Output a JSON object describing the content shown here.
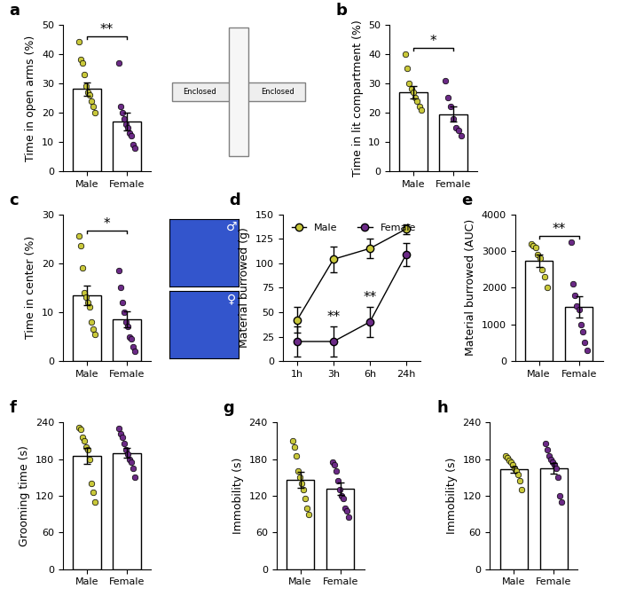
{
  "chart_data": [
    {
      "type": "bar",
      "title": "a",
      "categories": [
        "Male",
        "Female"
      ],
      "values": [
        28,
        17
      ],
      "errors": [
        2.4,
        2.9
      ],
      "points": [
        [
          44,
          38,
          37,
          33,
          29,
          27,
          26,
          24,
          22,
          20
        ],
        [
          37,
          22,
          20,
          18,
          16,
          15,
          13,
          12,
          9,
          8
        ]
      ],
      "colors": [
        "#c9c83a",
        "#6b2a86"
      ],
      "y_label": "Time in open arms (%)",
      "ylim": [
        0,
        50
      ],
      "yticks": [
        0,
        10,
        20,
        30,
        40,
        50
      ],
      "annotations": [
        "**"
      ],
      "diagram_labels": [
        "Enclosed",
        "Enclosed"
      ]
    },
    {
      "type": "bar",
      "title": "b",
      "categories": [
        "Male",
        "Female"
      ],
      "values": [
        27,
        19.5
      ],
      "errors": [
        2.1,
        2.5
      ],
      "points": [
        [
          40,
          35,
          30,
          28,
          27,
          25,
          24,
          22,
          21
        ],
        [
          31,
          25,
          22,
          18,
          15,
          14,
          12
        ]
      ],
      "colors": [
        "#c9c83a",
        "#6b2a86"
      ],
      "y_label": "Time in lit compartment (%)",
      "ylim": [
        0,
        50
      ],
      "yticks": [
        0,
        10,
        20,
        30,
        40,
        50
      ],
      "annotations": [
        "*"
      ]
    },
    {
      "type": "bar",
      "title": "c",
      "categories": [
        "Male",
        "Female"
      ],
      "values": [
        13.5,
        8.5
      ],
      "errors": [
        2.0,
        1.6
      ],
      "points": [
        [
          25.5,
          23.5,
          19,
          14,
          13,
          12,
          11,
          8,
          6.5,
          5.5
        ],
        [
          18.5,
          15,
          12,
          10,
          8,
          7,
          5,
          4.5,
          3,
          2
        ]
      ],
      "colors": [
        "#c9c83a",
        "#6b2a86"
      ],
      "y_label": "Time in center (%)",
      "ylim": [
        0,
        30
      ],
      "yticks": [
        0,
        10,
        20,
        30
      ],
      "annotations": [
        "*"
      ],
      "heatmap_labels": [
        "♂",
        "♀"
      ]
    },
    {
      "type": "line",
      "title": "d",
      "categories": [
        "1h",
        "3h",
        "6h",
        "24h"
      ],
      "y_label": "Material burrowed (g)",
      "ylim": [
        0,
        150
      ],
      "yticks": [
        0,
        25,
        50,
        75,
        100,
        125,
        150
      ],
      "legend": "upper left",
      "series": [
        {
          "name": "Male",
          "color": "#c9c83a",
          "values": [
            42,
            104,
            115,
            135
          ],
          "errors": [
            13,
            13,
            10,
            5
          ],
          "annotations": [
            null,
            null,
            null,
            null
          ]
        },
        {
          "name": "Female",
          "color": "#6b2a86",
          "values": [
            20,
            20,
            40,
            109
          ],
          "errors": [
            15,
            15,
            15,
            12
          ],
          "annotations": [
            null,
            "**",
            "**",
            null
          ]
        }
      ]
    },
    {
      "type": "bar",
      "title": "e",
      "categories": [
        "Male",
        "Female"
      ],
      "values": [
        2740,
        1480
      ],
      "errors": [
        170,
        290
      ],
      "points": [
        [
          3200,
          3150,
          3100,
          2900,
          2800,
          2500,
          2300,
          2000
        ],
        [
          3250,
          2100,
          1800,
          1500,
          1400,
          1000,
          800,
          500,
          300
        ]
      ],
      "colors": [
        "#c9c83a",
        "#6b2a86"
      ],
      "y_label": "Material burrowed (AUC)",
      "ylim": [
        0,
        4000
      ],
      "yticks": [
        0,
        1000,
        2000,
        3000,
        4000
      ],
      "annotations": [
        "**"
      ]
    },
    {
      "type": "bar",
      "title": "f",
      "categories": [
        "Male",
        "Female"
      ],
      "values": [
        185,
        190
      ],
      "errors": [
        13,
        8
      ],
      "points": [
        [
          232,
          228,
          215,
          210,
          200,
          195,
          180,
          140,
          125,
          110
        ],
        [
          230,
          222,
          215,
          205,
          195,
          188,
          180,
          175,
          165,
          150
        ]
      ],
      "colors": [
        "#c9c83a",
        "#6b2a86"
      ],
      "y_label": "Grooming time (s)",
      "ylim": [
        0,
        240
      ],
      "yticks": [
        0,
        60,
        120,
        180,
        240
      ],
      "annotations": []
    },
    {
      "type": "bar",
      "title": "g",
      "categories": [
        "Male",
        "Female"
      ],
      "values": [
        146,
        131
      ],
      "errors": [
        13,
        10
      ],
      "points": [
        [
          210,
          200,
          185,
          160,
          150,
          140,
          130,
          115,
          100,
          90
        ],
        [
          175,
          170,
          160,
          145,
          130,
          120,
          115,
          100,
          95,
          85
        ]
      ],
      "colors": [
        "#c9c83a",
        "#6b2a86"
      ],
      "y_label": "Immobility (s)",
      "ylim": [
        0,
        240
      ],
      "yticks": [
        0,
        60,
        120,
        180,
        240
      ],
      "annotations": []
    },
    {
      "type": "bar",
      "title": "h",
      "categories": [
        "Male",
        "Female"
      ],
      "values": [
        163,
        165
      ],
      "errors": [
        5,
        9
      ],
      "points": [
        [
          185,
          182,
          178,
          175,
          170,
          165,
          160,
          155,
          145,
          130
        ],
        [
          205,
          195,
          185,
          180,
          175,
          170,
          165,
          150,
          120,
          110
        ]
      ],
      "colors": [
        "#c9c83a",
        "#6b2a86"
      ],
      "y_label": "Immobility (s)",
      "ylim": [
        0,
        240
      ],
      "yticks": [
        0,
        60,
        120,
        180,
        240
      ],
      "annotations": []
    }
  ]
}
